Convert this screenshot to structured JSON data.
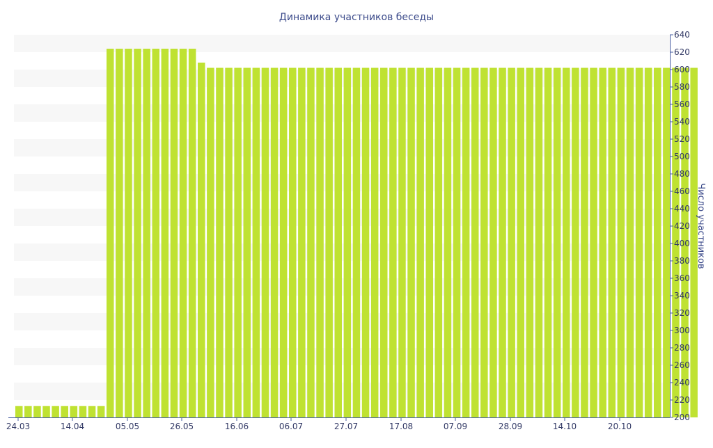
{
  "chart_data": {
    "type": "bar",
    "title": "Динамика участников беседы",
    "ylabel": "Число участников",
    "xlabel": "",
    "ylim": [
      200,
      640
    ],
    "y_ticks": [
      200,
      220,
      240,
      260,
      280,
      300,
      320,
      340,
      360,
      380,
      400,
      420,
      440,
      460,
      480,
      500,
      520,
      540,
      560,
      580,
      600,
      620,
      640
    ],
    "x_ticks": [
      "24.03",
      "14.04",
      "05.05",
      "26.05",
      "16.06",
      "06.07",
      "27.07",
      "17.08",
      "07.09",
      "28.09",
      "14.10",
      "20.10"
    ],
    "bar_color": "#bfe232",
    "stripe_color": "#f7f7f7",
    "axis_color": "#4a5fa3",
    "title_color": "#3b4a8a",
    "grid": "alternating horizontal bands",
    "y_axis_side": "right",
    "values": [
      213,
      213,
      213,
      213,
      213,
      213,
      213,
      213,
      213,
      213,
      624,
      624,
      624,
      624,
      624,
      624,
      624,
      624,
      624,
      624,
      608,
      602,
      602,
      602,
      602,
      602,
      602,
      602,
      602,
      602,
      602,
      602,
      602,
      602,
      602,
      602,
      602,
      602,
      602,
      602,
      602,
      602,
      602,
      602,
      602,
      602,
      602,
      602,
      602,
      602,
      602,
      602,
      602,
      602,
      602,
      602,
      602,
      602,
      602,
      602,
      602,
      602,
      602,
      602,
      602,
      602,
      602,
      602,
      602,
      602,
      602,
      602,
      602,
      602,
      602
    ]
  }
}
